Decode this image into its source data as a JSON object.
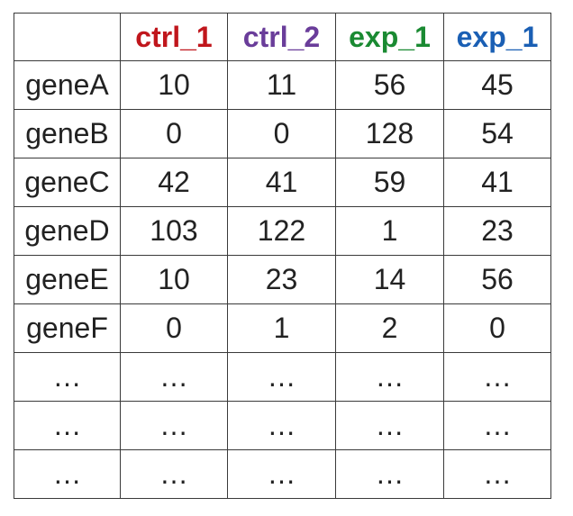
{
  "table": {
    "columns": [
      {
        "label": "",
        "color": "#222222"
      },
      {
        "label": "ctrl_1",
        "color": "#c0161c"
      },
      {
        "label": "ctrl_2",
        "color": "#6a3d9a"
      },
      {
        "label": "exp_1",
        "color": "#1a8a32"
      },
      {
        "label": "exp_1",
        "color": "#1a5fb4"
      }
    ],
    "rows": [
      [
        "geneA",
        "10",
        "11",
        "56",
        "45"
      ],
      [
        "geneB",
        "0",
        "0",
        "128",
        "54"
      ],
      [
        "geneC",
        "42",
        "41",
        "59",
        "41"
      ],
      [
        "geneD",
        "103",
        "122",
        "1",
        "23"
      ],
      [
        "geneE",
        "10",
        "23",
        "14",
        "56"
      ],
      [
        "geneF",
        "0",
        "1",
        "2",
        "0"
      ],
      [
        "…",
        "…",
        "…",
        "…",
        "…"
      ],
      [
        "…",
        "…",
        "…",
        "…",
        "…"
      ],
      [
        "…",
        "…",
        "…",
        "…",
        "…"
      ]
    ]
  }
}
